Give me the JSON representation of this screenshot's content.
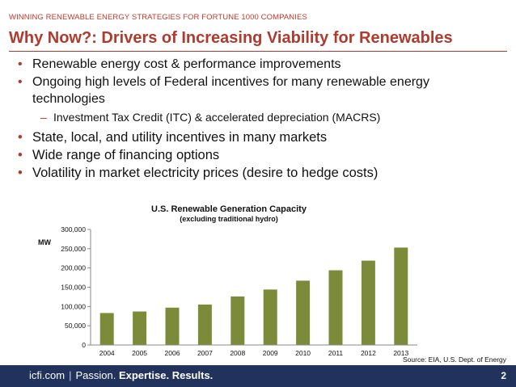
{
  "kicker": "WINNING RENEWABLE ENERGY STRATEGIES FOR FORTUNE 1000 COMPANIES",
  "title": "Why Now?: Drivers of Increasing Viability for Renewables",
  "bullets": [
    {
      "text": "Renewable energy cost & performance improvements",
      "level": 1
    },
    {
      "text": "Ongoing high levels of Federal incentives for many renewable energy technologies",
      "level": 1
    },
    {
      "text": "Investment Tax Credit (ITC) & accelerated depreciation (MACRS)",
      "level": 2
    },
    {
      "text": "State, local, and utility incentives in many markets",
      "level": 1
    },
    {
      "text": "Wide range of financing options",
      "level": 1
    },
    {
      "text": "Volatility in market electricity prices (desire to hedge costs)",
      "level": 1
    }
  ],
  "chart_data": {
    "type": "bar",
    "title": "U.S. Renewable Generation Capacity",
    "subtitle": "(excluding traditional hydro)",
    "ylabel": "MW",
    "xlabel": "",
    "categories": [
      "2004",
      "2005",
      "2006",
      "2007",
      "2008",
      "2009",
      "2010",
      "2011",
      "2012",
      "2013"
    ],
    "values": [
      83000,
      87000,
      97000,
      105000,
      126000,
      144000,
      167000,
      194000,
      219000,
      253000
    ],
    "ylim": [
      0,
      300000
    ],
    "yticks": [
      "0",
      "50,000",
      "100,000",
      "150,000",
      "200,000",
      "250,000",
      "300,000"
    ],
    "bar_color": "#7b8b3a",
    "grid": false
  },
  "source": "Source: EIA, U.S. Dept. of Energy",
  "footer": {
    "site": "icfi.com",
    "separator": "|",
    "tagline_passion": "Passion.",
    "tagline_rest": "Expertise. Results."
  },
  "page_number": "2"
}
